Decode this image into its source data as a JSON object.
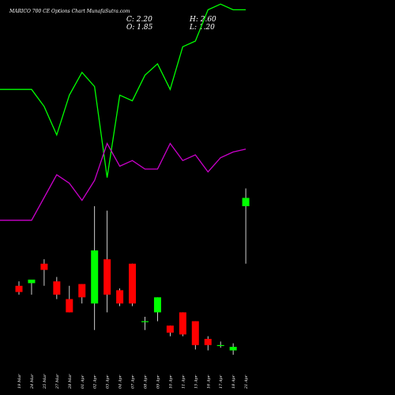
{
  "header": {
    "title": "MARICO 700  CE Options  Chart MunafaSutra.com",
    "close_label": "C: 2.20",
    "high_label": "H: 2.60",
    "open_label": "O: 1.85",
    "low_label": "L: 1.20"
  },
  "colors": {
    "background": "#000000",
    "up": "#00ff00",
    "down": "#ff0000",
    "line1": "#00ff00",
    "line2": "#cc00cc",
    "wick": "#ffffff"
  },
  "chart_data": {
    "type": "candlestick",
    "categories": [
      "19 Mar",
      "24 Mar",
      "25 Mar",
      "27 Mar",
      "28 Mar",
      "01 Apr",
      "02 Apr",
      "03 Apr",
      "04 Apr",
      "07 Apr",
      "08 Apr",
      "09 Apr",
      "10 Apr",
      "11 Apr",
      "15 Apr",
      "16 Apr",
      "17 Apr",
      "18 Apr",
      "21 Apr"
    ],
    "candles": [
      {
        "open": 0.95,
        "high": 1.0,
        "low": 0.85,
        "close": 0.88
      },
      {
        "open": 0.98,
        "high": 1.02,
        "low": 0.85,
        "close": 1.02
      },
      {
        "open": 1.2,
        "high": 1.25,
        "low": 0.95,
        "close": 1.13
      },
      {
        "open": 1.0,
        "high": 1.05,
        "low": 0.8,
        "close": 0.85
      },
      {
        "open": 0.8,
        "high": 0.95,
        "low": 0.65,
        "close": 0.65
      },
      {
        "open": 0.97,
        "high": 0.97,
        "low": 0.75,
        "close": 0.82
      },
      {
        "open": 0.75,
        "high": 1.85,
        "low": 0.45,
        "close": 1.35
      },
      {
        "open": 1.25,
        "high": 1.8,
        "low": 0.65,
        "close": 0.85
      },
      {
        "open": 0.9,
        "high": 0.92,
        "low": 0.72,
        "close": 0.75
      },
      {
        "open": 1.2,
        "high": 1.2,
        "low": 0.72,
        "close": 0.75
      },
      {
        "open": 0.55,
        "high": 0.6,
        "low": 0.45,
        "close": 0.55
      },
      {
        "open": 0.65,
        "high": 0.82,
        "low": 0.55,
        "close": 0.82
      },
      {
        "open": 0.5,
        "high": 0.5,
        "low": 0.38,
        "close": 0.42
      },
      {
        "open": 0.65,
        "high": 0.65,
        "low": 0.38,
        "close": 0.4
      },
      {
        "open": 0.55,
        "high": 0.55,
        "low": 0.23,
        "close": 0.28
      },
      {
        "open": 0.35,
        "high": 0.38,
        "low": 0.22,
        "close": 0.28
      },
      {
        "open": 0.28,
        "high": 0.32,
        "low": 0.25,
        "close": 0.28
      },
      {
        "open": 0.22,
        "high": 0.3,
        "low": 0.17,
        "close": 0.26
      },
      {
        "open": 1.85,
        "high": 2.6,
        "low": 1.2,
        "close": 2.2
      }
    ],
    "overlay_lines": [
      {
        "color": "#00ff00",
        "values": [
          88,
          88,
          82,
          72,
          86,
          94,
          89,
          57,
          86,
          84,
          93,
          97,
          88,
          103,
          105,
          116,
          118,
          116,
          116
        ]
      },
      {
        "color": "#cc00cc",
        "values": [
          42,
          42,
          50,
          58,
          55,
          49,
          56,
          69,
          61,
          63,
          60,
          60,
          69,
          63,
          65,
          59,
          64,
          66,
          67
        ]
      }
    ]
  }
}
